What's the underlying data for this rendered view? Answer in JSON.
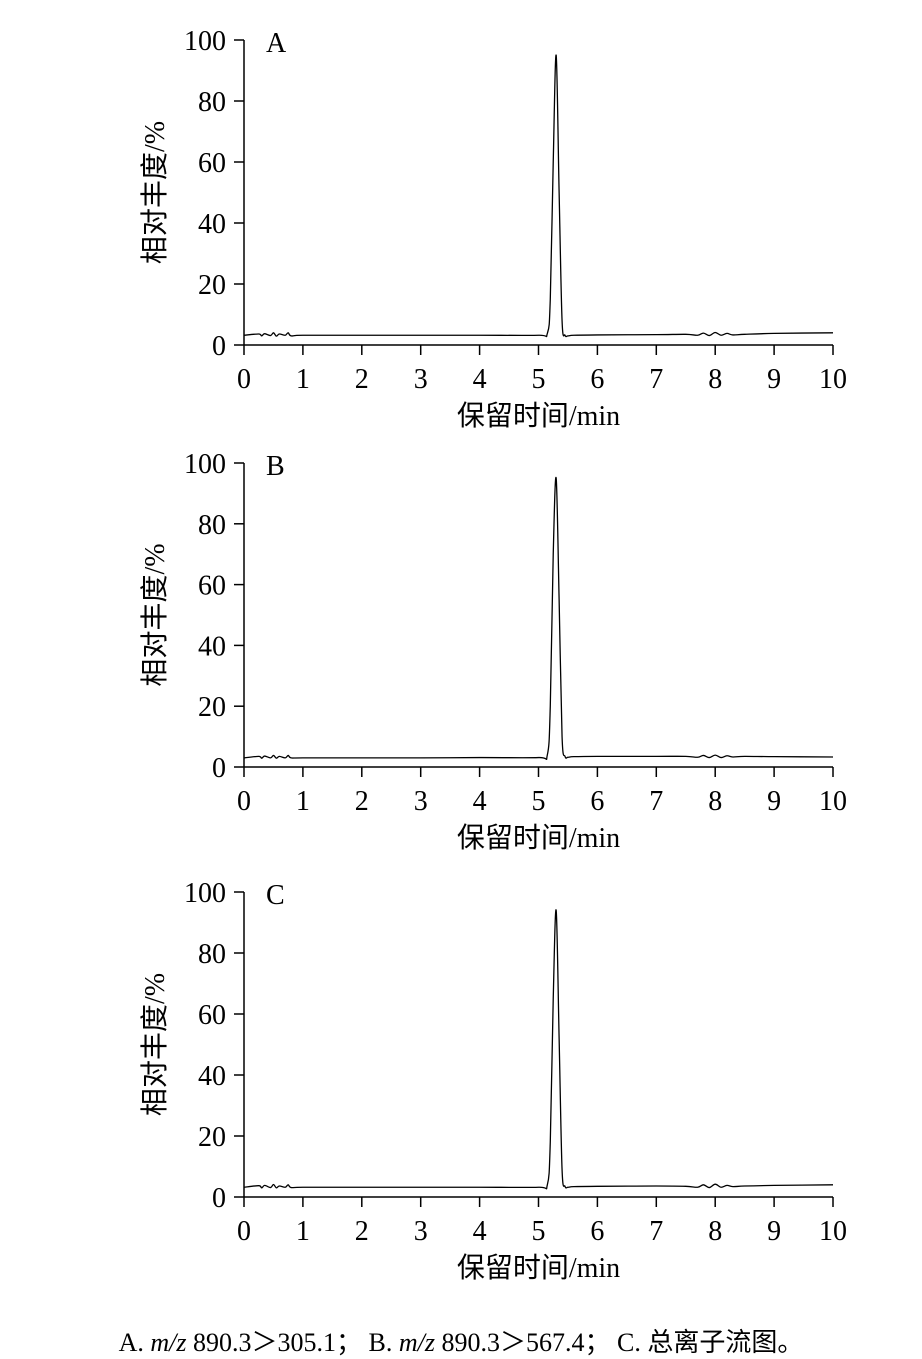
{
  "chart_data": [
    {
      "type": "line",
      "panel_label": "A",
      "xlabel": "保留时间/min",
      "ylabel": "相对丰度/%",
      "xlim": [
        0,
        10
      ],
      "ylim": [
        0,
        100
      ],
      "xticks": [
        0,
        1,
        2,
        3,
        4,
        5,
        6,
        7,
        8,
        9,
        10
      ],
      "yticks": [
        0,
        20,
        40,
        60,
        80,
        100
      ],
      "grid": false,
      "x": [
        0,
        0.25,
        0.3,
        0.35,
        0.45,
        0.5,
        0.55,
        0.6,
        0.7,
        0.75,
        0.8,
        1.0,
        2.0,
        3.0,
        4.0,
        5.0,
        5.15,
        5.2,
        5.25,
        5.3,
        5.35,
        5.4,
        5.45,
        5.5,
        5.6,
        6.0,
        7.0,
        7.5,
        7.7,
        7.8,
        7.9,
        8.0,
        8.1,
        8.2,
        8.3,
        8.5,
        9.0,
        10.0
      ],
      "y": [
        3.2,
        3.6,
        3.0,
        3.7,
        3.1,
        4.0,
        2.9,
        3.6,
        3.2,
        4.0,
        3.0,
        3.2,
        3.2,
        3.2,
        3.2,
        3.2,
        3.8,
        15,
        60,
        95,
        50,
        8,
        3.2,
        3.0,
        3.2,
        3.3,
        3.4,
        3.5,
        3.2,
        3.9,
        3.1,
        4.1,
        3.2,
        3.8,
        3.3,
        3.5,
        3.8,
        4.0
      ]
    },
    {
      "type": "line",
      "panel_label": "B",
      "xlabel": "保留时间/min",
      "ylabel": "相对丰度/%",
      "xlim": [
        0,
        10
      ],
      "ylim": [
        0,
        100
      ],
      "xticks": [
        0,
        1,
        2,
        3,
        4,
        5,
        6,
        7,
        8,
        9,
        10
      ],
      "yticks": [
        0,
        20,
        40,
        60,
        80,
        100
      ],
      "grid": false,
      "x": [
        0,
        0.25,
        0.3,
        0.35,
        0.45,
        0.5,
        0.55,
        0.6,
        0.7,
        0.75,
        0.8,
        1.0,
        2.0,
        3.0,
        4.0,
        5.0,
        5.15,
        5.2,
        5.25,
        5.3,
        5.35,
        5.4,
        5.45,
        5.5,
        5.6,
        6.0,
        7.0,
        7.5,
        7.7,
        7.8,
        7.9,
        8.0,
        8.1,
        8.2,
        8.3,
        8.5,
        9.0,
        10.0
      ],
      "y": [
        3.0,
        3.5,
        2.9,
        3.6,
        3.0,
        3.8,
        2.9,
        3.5,
        3.0,
        3.8,
        3.0,
        3.0,
        3.0,
        3.0,
        3.1,
        3.1,
        4.0,
        20,
        70,
        95,
        55,
        10,
        3.5,
        3.2,
        3.4,
        3.5,
        3.5,
        3.5,
        3.2,
        3.8,
        3.1,
        3.9,
        3.1,
        3.7,
        3.3,
        3.5,
        3.4,
        3.3
      ]
    },
    {
      "type": "line",
      "panel_label": "C",
      "xlabel": "保留时间/min",
      "ylabel": "相对丰度/%",
      "xlim": [
        0,
        10
      ],
      "ylim": [
        0,
        100
      ],
      "xticks": [
        0,
        1,
        2,
        3,
        4,
        5,
        6,
        7,
        8,
        9,
        10
      ],
      "yticks": [
        0,
        20,
        40,
        60,
        80,
        100
      ],
      "grid": false,
      "x": [
        0,
        0.25,
        0.3,
        0.35,
        0.45,
        0.5,
        0.55,
        0.6,
        0.7,
        0.75,
        0.8,
        1.0,
        2.0,
        3.0,
        4.0,
        5.0,
        5.15,
        5.2,
        5.25,
        5.3,
        5.35,
        5.4,
        5.45,
        5.5,
        5.6,
        6.0,
        7.0,
        7.5,
        7.7,
        7.8,
        7.9,
        8.0,
        8.1,
        8.2,
        8.3,
        8.5,
        9.0,
        10.0
      ],
      "y": [
        3.2,
        3.7,
        3.0,
        3.8,
        3.1,
        4.1,
        3.0,
        3.6,
        3.2,
        4.0,
        3.1,
        3.2,
        3.2,
        3.2,
        3.2,
        3.2,
        4.0,
        18,
        65,
        94,
        52,
        9,
        3.5,
        3.2,
        3.4,
        3.5,
        3.6,
        3.5,
        3.2,
        4.0,
        3.1,
        4.2,
        3.2,
        3.8,
        3.4,
        3.6,
        3.8,
        4.0
      ]
    }
  ],
  "caption": {
    "a_prefix": "A. ",
    "mz": "m/z",
    "a_rest": " 890.3＞305.1；",
    "b_prefix": " B. ",
    "b_rest": " 890.3＞567.4；",
    "c_text": " C. 总离子流图。"
  }
}
